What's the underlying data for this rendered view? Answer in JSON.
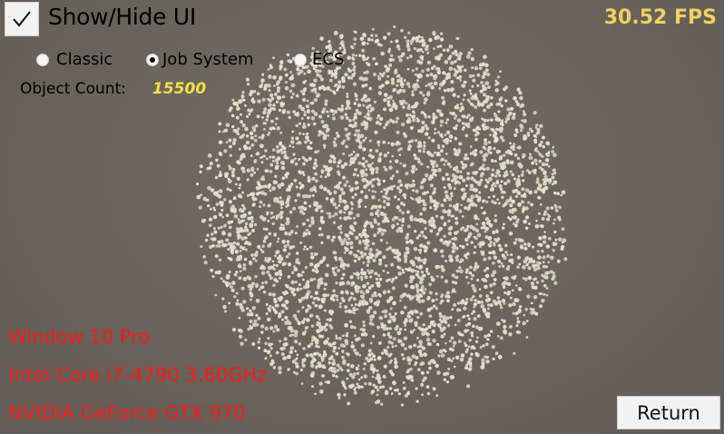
{
  "ui": {
    "toggle_label": "Show/Hide UI",
    "toggle_checked": true,
    "fps": "30.52 FPS",
    "modes": [
      {
        "label": "Classic",
        "selected": false
      },
      {
        "label": "Job System",
        "selected": true
      },
      {
        "label": "ECS",
        "selected": false
      }
    ],
    "count_label": "Object Count:",
    "count_value": "15500",
    "return_label": "Return"
  },
  "system": {
    "os": "Window 10 Pro",
    "cpu": "Intel Core i7-4790 3.60GHz",
    "gpu": "NVIDIA GeForce GTX 970"
  },
  "colors": {
    "background": "#6a645c",
    "fps": "#f0d060",
    "count_value": "#f0e04a",
    "system_text": "#ff1a1a",
    "particles": "#e4e0cc"
  },
  "scene": {
    "object": "particle-sphere"
  }
}
